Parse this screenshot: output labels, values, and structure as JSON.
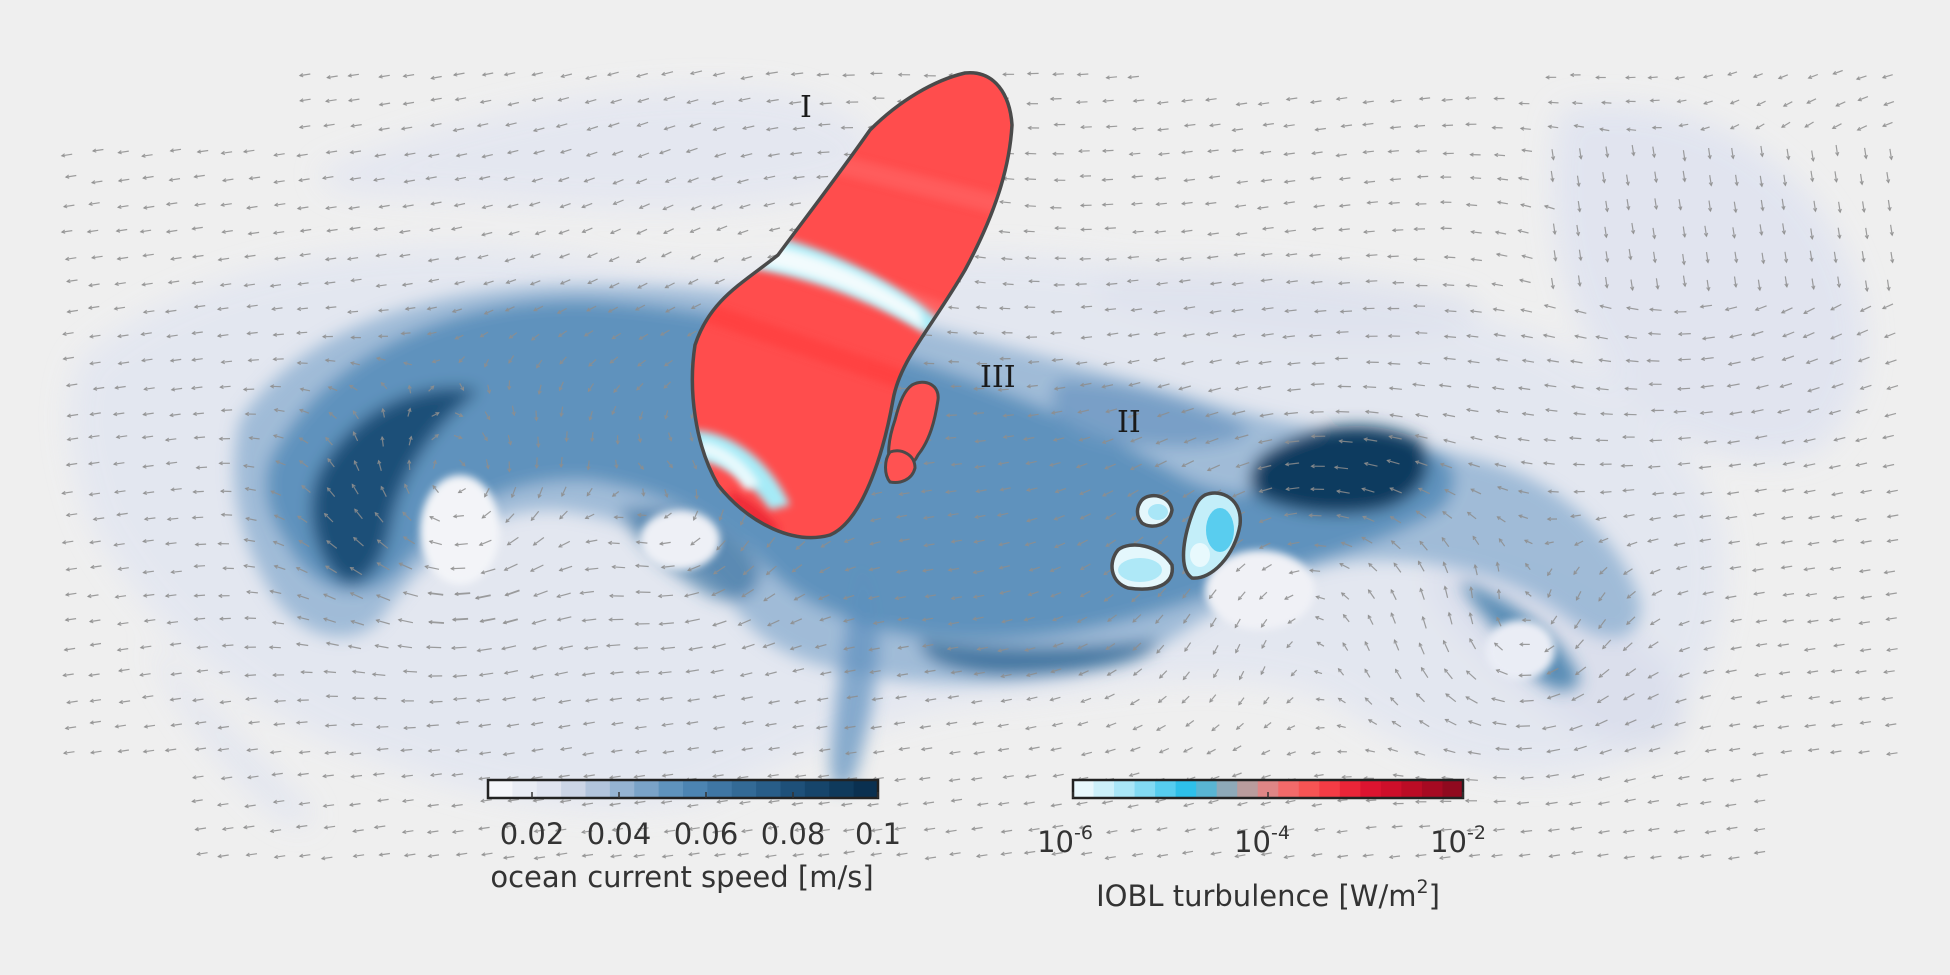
{
  "region_labels": [
    "I",
    "II",
    "III"
  ],
  "colorbars": {
    "speed": {
      "ticks": [
        "0.02",
        "0.04",
        "0.06",
        "0.08",
        "0.1"
      ],
      "title": "ocean current speed [m/s]",
      "colors": [
        "#f5f6fa",
        "#e9ecf4",
        "#dfe3ef",
        "#ccd5e6",
        "#b2c4dc",
        "#95b3d2",
        "#7aa3c8",
        "#5f93bd",
        "#4c84b2",
        "#3f76a4",
        "#336a96",
        "#285d88",
        "#1e5079",
        "#16456b",
        "#0f3a5c",
        "#0a3050"
      ]
    },
    "turbulence": {
      "tick_base": "10",
      "tick_exponents": [
        "-6",
        "-4",
        "-2"
      ],
      "title_main": "IOBL turbulence [W/m",
      "title_sup": "2",
      "title_end": "]",
      "colors": [
        "#e8f8fd",
        "#ccf0fa",
        "#a9e6f7",
        "#82daf3",
        "#56cdef",
        "#2ec0ea",
        "#59b5d3",
        "#8ea9b8",
        "#b99c9d",
        "#df8686",
        "#f36a6a",
        "#f75454",
        "#f43c45",
        "#ea2538",
        "#dc1430",
        "#cd0f2a",
        "#bb0c25",
        "#a60a22",
        "#900a1f"
      ]
    }
  },
  "colors": {
    "background": "#efefef",
    "cold_blob": "#ff4d4d",
    "hot_band": "#a6ebf7",
    "outline": "#4a4a4a",
    "arrow": "#8e8e8e"
  }
}
